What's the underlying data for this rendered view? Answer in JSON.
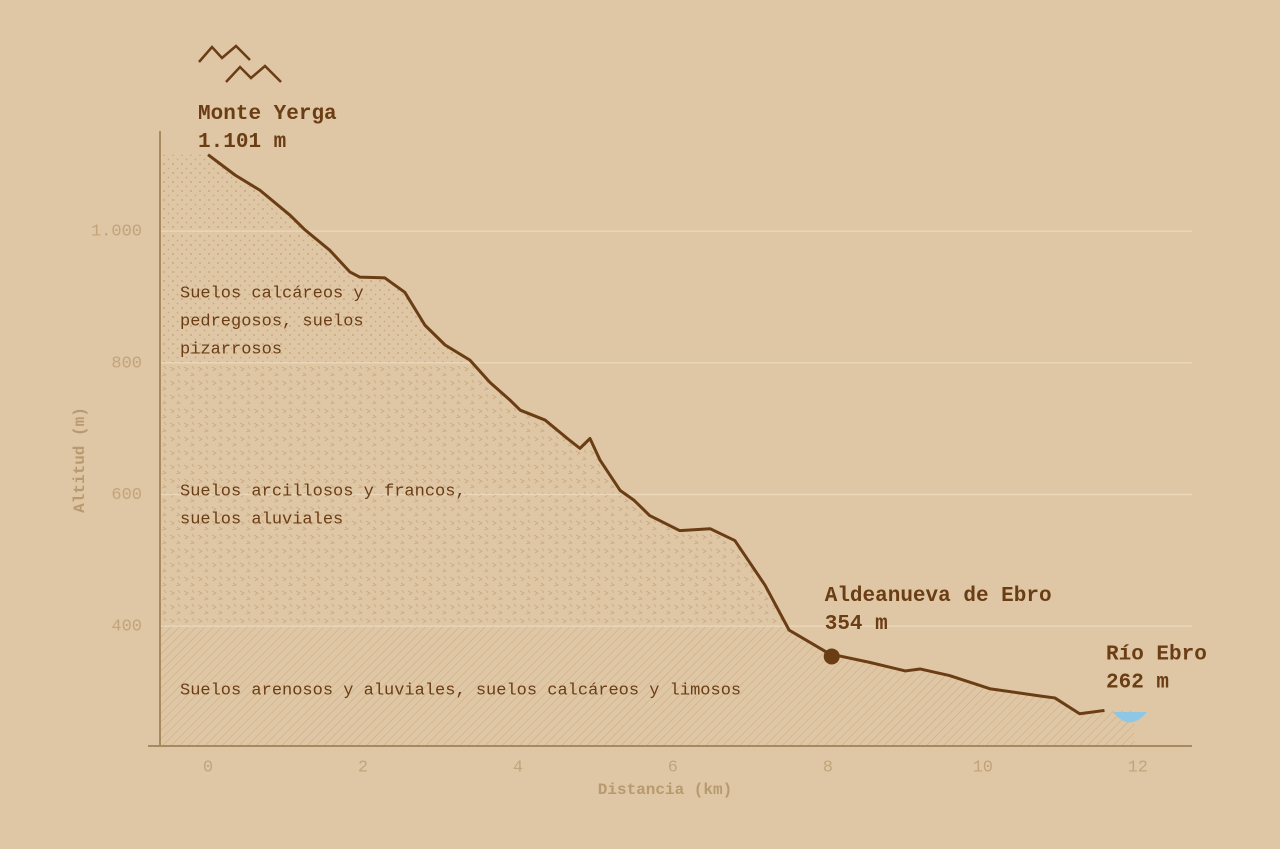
{
  "chart_data": {
    "type": "area",
    "x_label": "Distancia (km)",
    "y_label": "Altitud (m)",
    "xlim": [
      -0.62,
      12.7
    ],
    "ylim": [
      218,
      1152
    ],
    "xticks": [
      0,
      2,
      4,
      6,
      8,
      10,
      12
    ],
    "yticks": [
      400,
      600,
      800,
      {
        "value": 1000,
        "label": "1.000"
      }
    ],
    "grid": true,
    "color": "#6b3d15",
    "x": [
      0,
      0.35,
      0.67,
      1.06,
      1.25,
      1.57,
      1.83,
      1.96,
      2.28,
      2.54,
      2.8,
      3.06,
      3.38,
      3.64,
      3.9,
      4.03,
      4.35,
      4.67,
      4.8,
      4.93,
      5.06,
      5.32,
      5.5,
      5.7,
      6.09,
      6.48,
      6.8,
      7.19,
      7.5,
      8.02,
      8.54,
      9.0,
      9.19,
      9.57,
      10.09,
      10.74,
      10.93,
      11.25,
      11.57
    ],
    "values": [
      1116,
      1085,
      1062,
      1024,
      1002,
      971,
      938,
      930,
      929,
      907,
      857,
      827,
      804,
      770,
      743,
      728,
      713,
      682,
      670,
      685,
      652,
      606,
      591,
      568,
      545,
      548,
      530,
      462,
      394,
      358,
      345,
      332,
      335,
      325,
      305,
      294,
      291,
      267,
      272
    ],
    "bands": [
      {
        "label": [
          "Suelos calcáreos y",
          "pedregosos, suelos",
          "pizarrosos"
        ],
        "from": 800,
        "to": 1152
      },
      {
        "label": [
          "Suelos arcillosos y francos,",
          "suelos aluviales"
        ],
        "from": 400,
        "to": 800
      },
      {
        "label": [
          "Suelos arenosos y aluviales, suelos calcáreos y limosos"
        ],
        "from": 218,
        "to": 400
      }
    ],
    "annotations": [
      {
        "label": "Monte Yerga",
        "value_label": "1.101 m",
        "x": 0,
        "y": 1101
      },
      {
        "label": "Aldeanueva de Ebro",
        "value_label": "354 m",
        "x": 8.05,
        "y": 354
      },
      {
        "label": "Río Ebro",
        "value_label": "262 m",
        "x": 11.9,
        "y": 262
      }
    ]
  }
}
